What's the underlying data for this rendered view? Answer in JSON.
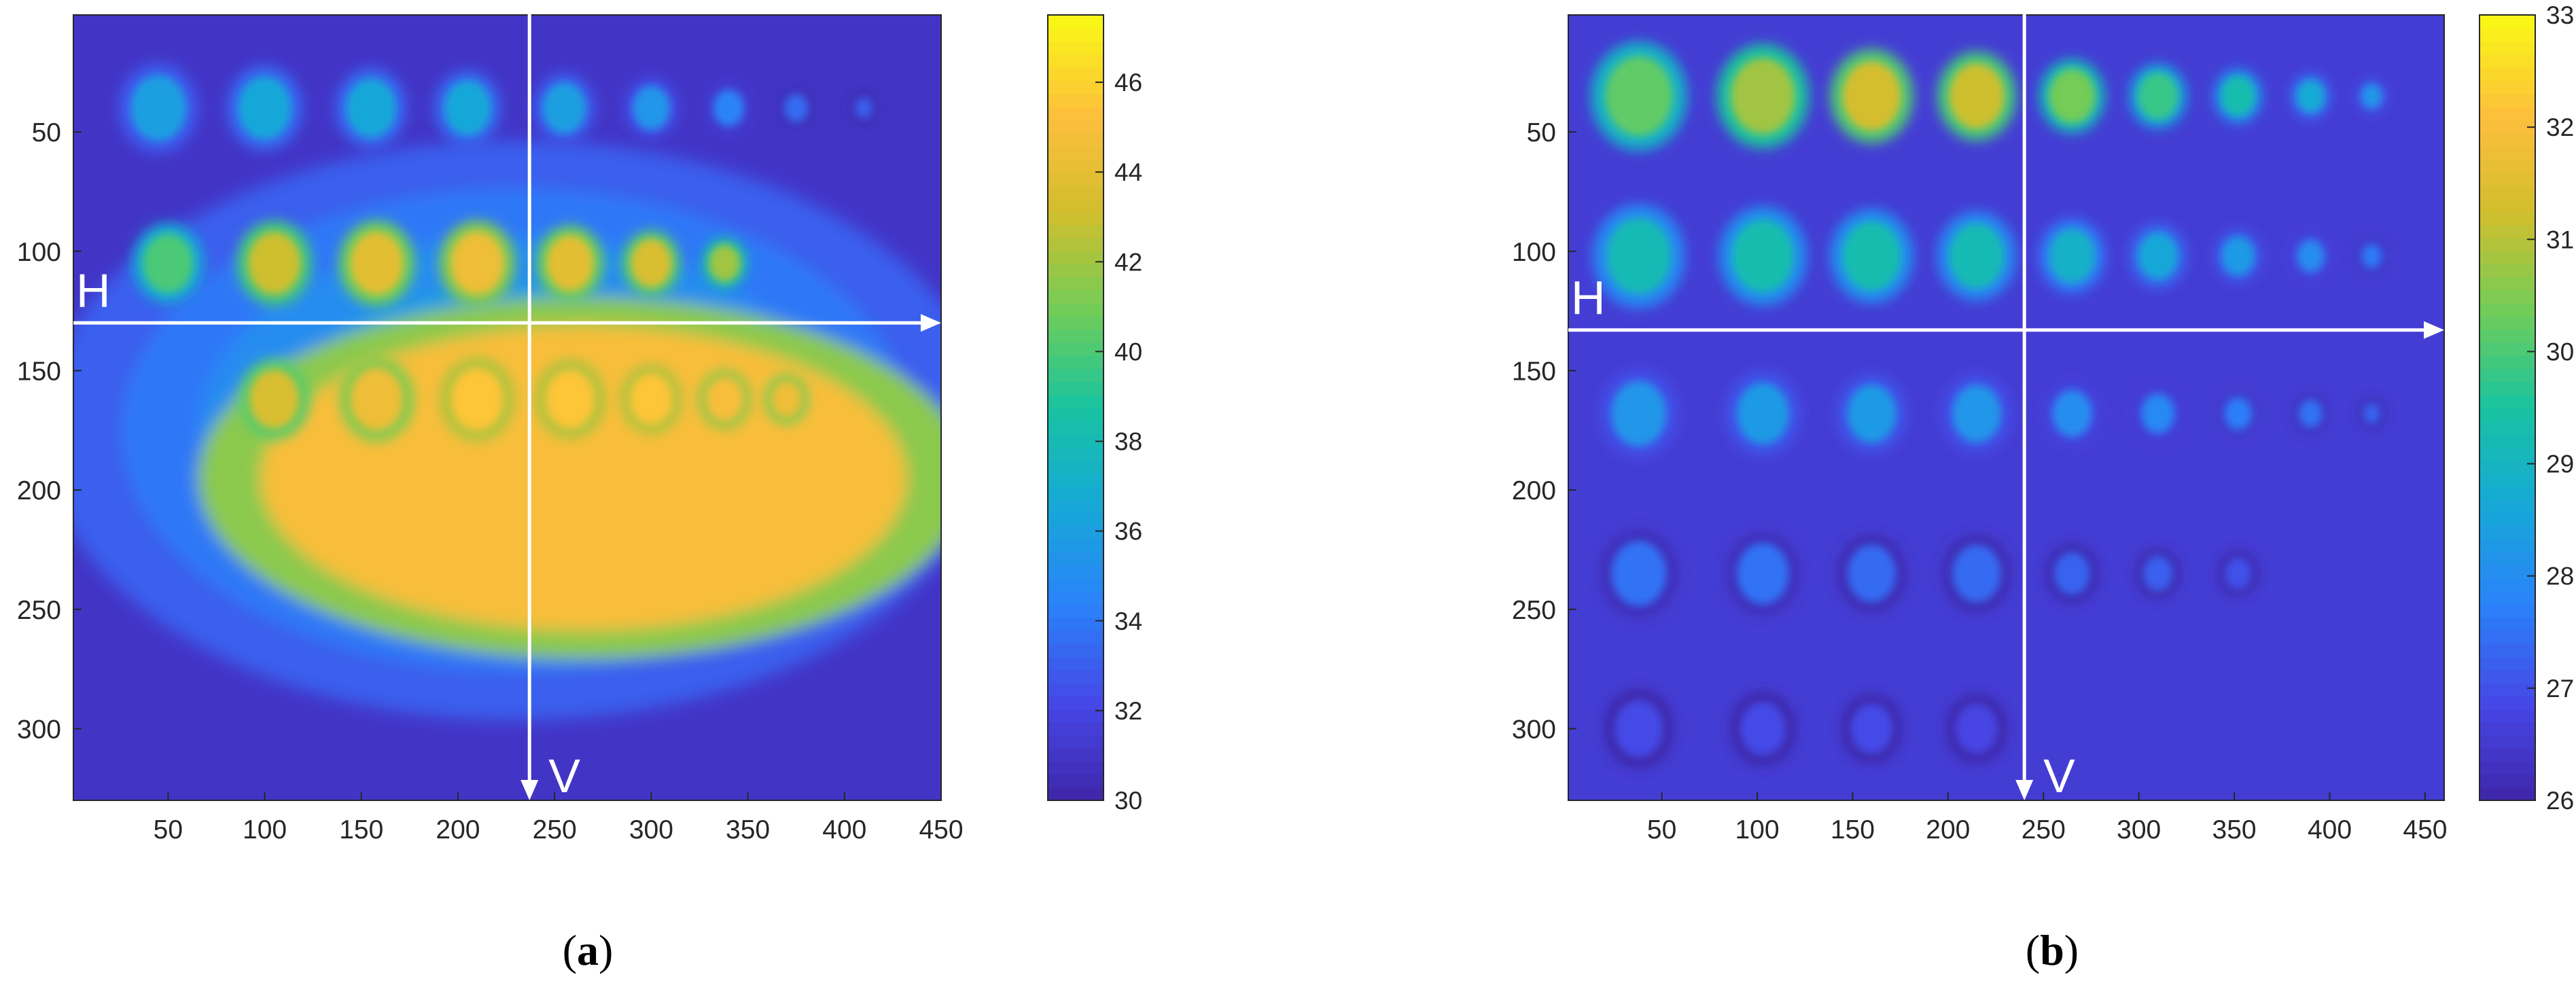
{
  "chart_data": [
    {
      "type": "heatmap",
      "caption": {
        "open": "(",
        "letter": "a",
        "close": ")"
      },
      "xlabel": "",
      "ylabel": "",
      "xlim": [
        1,
        450
      ],
      "ylim": [
        1,
        330
      ],
      "y_reversed": true,
      "x_ticks": [
        50,
        100,
        150,
        200,
        250,
        300,
        350,
        400,
        450
      ],
      "y_ticks": [
        50,
        100,
        150,
        200,
        250,
        300
      ],
      "colorbar": {
        "min": 30,
        "max": 47.5,
        "ticks": [
          30,
          32,
          34,
          36,
          38,
          40,
          42,
          44,
          46
        ]
      },
      "colormap": "parula",
      "background_value": 31,
      "plateau": {
        "cx": 265,
        "cy": 195,
        "rx": 190,
        "ry": 75,
        "value": 45
      },
      "dome": {
        "cx": 230,
        "cy": 175,
        "rx": 245,
        "ry": 150,
        "value": 38,
        "edge_value": 33
      },
      "spots": [
        {
          "x": 45,
          "y": 40,
          "r": 18,
          "value": 36
        },
        {
          "x": 100,
          "y": 40,
          "r": 17,
          "value": 36.5
        },
        {
          "x": 155,
          "y": 40,
          "r": 16,
          "value": 36.5
        },
        {
          "x": 205,
          "y": 40,
          "r": 15,
          "value": 36.5
        },
        {
          "x": 255,
          "y": 40,
          "r": 14,
          "value": 36
        },
        {
          "x": 300,
          "y": 40,
          "r": 12,
          "value": 35.5
        },
        {
          "x": 340,
          "y": 40,
          "r": 10,
          "value": 34.5
        },
        {
          "x": 375,
          "y": 40,
          "r": 8,
          "value": 33.5
        },
        {
          "x": 410,
          "y": 40,
          "r": 6,
          "value": 33
        },
        {
          "x": 50,
          "y": 105,
          "r": 16,
          "value": 40
        },
        {
          "x": 105,
          "y": 105,
          "r": 17,
          "value": 43
        },
        {
          "x": 158,
          "y": 105,
          "r": 17,
          "value": 44
        },
        {
          "x": 210,
          "y": 105,
          "r": 17,
          "value": 44.5
        },
        {
          "x": 258,
          "y": 105,
          "r": 15,
          "value": 44
        },
        {
          "x": 300,
          "y": 105,
          "r": 13,
          "value": 43.5
        },
        {
          "x": 338,
          "y": 105,
          "r": 10,
          "value": 42
        },
        {
          "x": 105,
          "y": 162,
          "r": 16,
          "value": 43.5
        },
        {
          "x": 158,
          "y": 162,
          "r": 17,
          "value": 44.5
        },
        {
          "x": 210,
          "y": 162,
          "r": 17,
          "value": 45.5
        },
        {
          "x": 258,
          "y": 162,
          "r": 16,
          "value": 45.5
        },
        {
          "x": 300,
          "y": 162,
          "r": 14,
          "value": 45.5
        },
        {
          "x": 338,
          "y": 162,
          "r": 12,
          "value": 45
        },
        {
          "x": 370,
          "y": 162,
          "r": 10,
          "value": 44.5
        }
      ],
      "annotations": [
        {
          "label": "H",
          "line": "horizontal",
          "at": 130,
          "from": 1,
          "to": 450
        },
        {
          "label": "V",
          "line": "vertical",
          "at": 237,
          "from": 1,
          "to": 330
        }
      ]
    },
    {
      "type": "heatmap",
      "caption": {
        "open": "(",
        "letter": "b",
        "close": ")"
      },
      "xlabel": "",
      "ylabel": "",
      "xlim": [
        1,
        460
      ],
      "ylim": [
        1,
        330
      ],
      "y_reversed": true,
      "x_ticks": [
        50,
        100,
        150,
        200,
        250,
        300,
        350,
        400,
        450
      ],
      "y_ticks": [
        50,
        100,
        150,
        200,
        250,
        300
      ],
      "colorbar": {
        "min": 26,
        "max": 33,
        "ticks": [
          26,
          27,
          28,
          29,
          30,
          31,
          32,
          33
        ]
      },
      "colormap": "parula",
      "background_value": 26.6,
      "spots": [
        {
          "x": 38,
          "y": 35,
          "r": 22,
          "value": 30.2
        },
        {
          "x": 103,
          "y": 35,
          "r": 21,
          "value": 30.8
        },
        {
          "x": 160,
          "y": 35,
          "r": 19,
          "value": 31.3
        },
        {
          "x": 215,
          "y": 35,
          "r": 18,
          "value": 31.2
        },
        {
          "x": 265,
          "y": 35,
          "r": 15,
          "value": 30.4
        },
        {
          "x": 310,
          "y": 35,
          "r": 13,
          "value": 29.8
        },
        {
          "x": 352,
          "y": 35,
          "r": 11,
          "value": 29.3
        },
        {
          "x": 390,
          "y": 35,
          "r": 9,
          "value": 28.7
        },
        {
          "x": 422,
          "y": 35,
          "r": 7,
          "value": 28.2
        },
        {
          "x": 38,
          "y": 102,
          "r": 21,
          "value": 29.2
        },
        {
          "x": 103,
          "y": 102,
          "r": 20,
          "value": 29.3
        },
        {
          "x": 160,
          "y": 102,
          "r": 19,
          "value": 29.3
        },
        {
          "x": 215,
          "y": 102,
          "r": 18,
          "value": 29.2
        },
        {
          "x": 265,
          "y": 102,
          "r": 15,
          "value": 28.9
        },
        {
          "x": 310,
          "y": 102,
          "r": 13,
          "value": 28.6
        },
        {
          "x": 352,
          "y": 102,
          "r": 11,
          "value": 28.3
        },
        {
          "x": 390,
          "y": 102,
          "r": 9,
          "value": 28.0
        },
        {
          "x": 422,
          "y": 102,
          "r": 7,
          "value": 27.6
        },
        {
          "x": 38,
          "y": 168,
          "r": 18,
          "value": 28.2
        },
        {
          "x": 103,
          "y": 168,
          "r": 17,
          "value": 28.3
        },
        {
          "x": 160,
          "y": 168,
          "r": 16,
          "value": 28.3
        },
        {
          "x": 215,
          "y": 168,
          "r": 16,
          "value": 28.2
        },
        {
          "x": 265,
          "y": 168,
          "r": 13,
          "value": 28.0
        },
        {
          "x": 310,
          "y": 168,
          "r": 11,
          "value": 27.9
        },
        {
          "x": 352,
          "y": 168,
          "r": 9,
          "value": 27.7
        },
        {
          "x": 390,
          "y": 168,
          "r": 8,
          "value": 27.5
        },
        {
          "x": 422,
          "y": 168,
          "r": 6,
          "value": 27.3
        },
        {
          "x": 38,
          "y": 235,
          "r": 18,
          "value": 27.5
        },
        {
          "x": 103,
          "y": 235,
          "r": 17,
          "value": 27.5
        },
        {
          "x": 160,
          "y": 235,
          "r": 16,
          "value": 27.4
        },
        {
          "x": 215,
          "y": 235,
          "r": 16,
          "value": 27.4
        },
        {
          "x": 265,
          "y": 235,
          "r": 12,
          "value": 27.3
        },
        {
          "x": 310,
          "y": 235,
          "r": 10,
          "value": 27.2
        },
        {
          "x": 352,
          "y": 235,
          "r": 9,
          "value": 27.0
        },
        {
          "x": 38,
          "y": 300,
          "r": 16,
          "value": 26.9
        },
        {
          "x": 103,
          "y": 300,
          "r": 15,
          "value": 26.9
        },
        {
          "x": 160,
          "y": 300,
          "r": 14,
          "value": 26.9
        },
        {
          "x": 215,
          "y": 300,
          "r": 14,
          "value": 26.8
        }
      ],
      "annotations": [
        {
          "label": "H",
          "line": "horizontal",
          "at": 133,
          "from": 1,
          "to": 460
        },
        {
          "label": "V",
          "line": "vertical",
          "at": 240,
          "from": 1,
          "to": 330
        }
      ]
    }
  ]
}
